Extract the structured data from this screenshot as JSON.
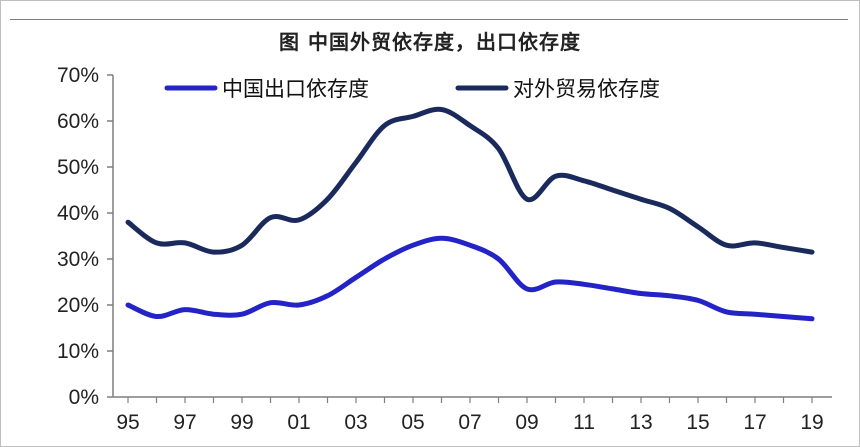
{
  "chart_data": {
    "type": "line",
    "title": "图  中国外贸依存度，出口依存度",
    "x": [
      "95",
      "96",
      "97",
      "98",
      "99",
      "00",
      "01",
      "02",
      "03",
      "04",
      "05",
      "06",
      "07",
      "08",
      "09",
      "10",
      "11",
      "12",
      "13",
      "14",
      "15",
      "16",
      "17",
      "18",
      "19"
    ],
    "xtick_labels": [
      "95",
      "97",
      "99",
      "01",
      "03",
      "05",
      "07",
      "09",
      "11",
      "13",
      "15",
      "17",
      "19"
    ],
    "ylim": [
      0,
      70
    ],
    "yticks": [
      "0%",
      "10%",
      "20%",
      "30%",
      "40%",
      "50%",
      "60%",
      "70%"
    ],
    "series": [
      {
        "name": "中国出口依存度",
        "color": "#2323c8",
        "values": [
          20.0,
          17.5,
          19.0,
          18.0,
          18.0,
          20.5,
          20.0,
          22.0,
          26.0,
          30.0,
          33.0,
          34.5,
          33.0,
          30.0,
          23.5,
          25.0,
          24.5,
          23.5,
          22.5,
          22.0,
          21.0,
          18.5,
          18.0,
          17.5,
          17.0
        ]
      },
      {
        "name": "对外贸易依存度",
        "color": "#1a2a5c",
        "values": [
          38.0,
          33.5,
          33.5,
          31.5,
          33.0,
          39.0,
          38.5,
          43.0,
          51.0,
          59.0,
          61.0,
          62.5,
          59.0,
          54.0,
          43.0,
          48.0,
          47.0,
          45.0,
          43.0,
          41.0,
          37.0,
          33.0,
          33.5,
          32.5,
          31.5
        ]
      }
    ],
    "grid": false,
    "legend": "top"
  }
}
